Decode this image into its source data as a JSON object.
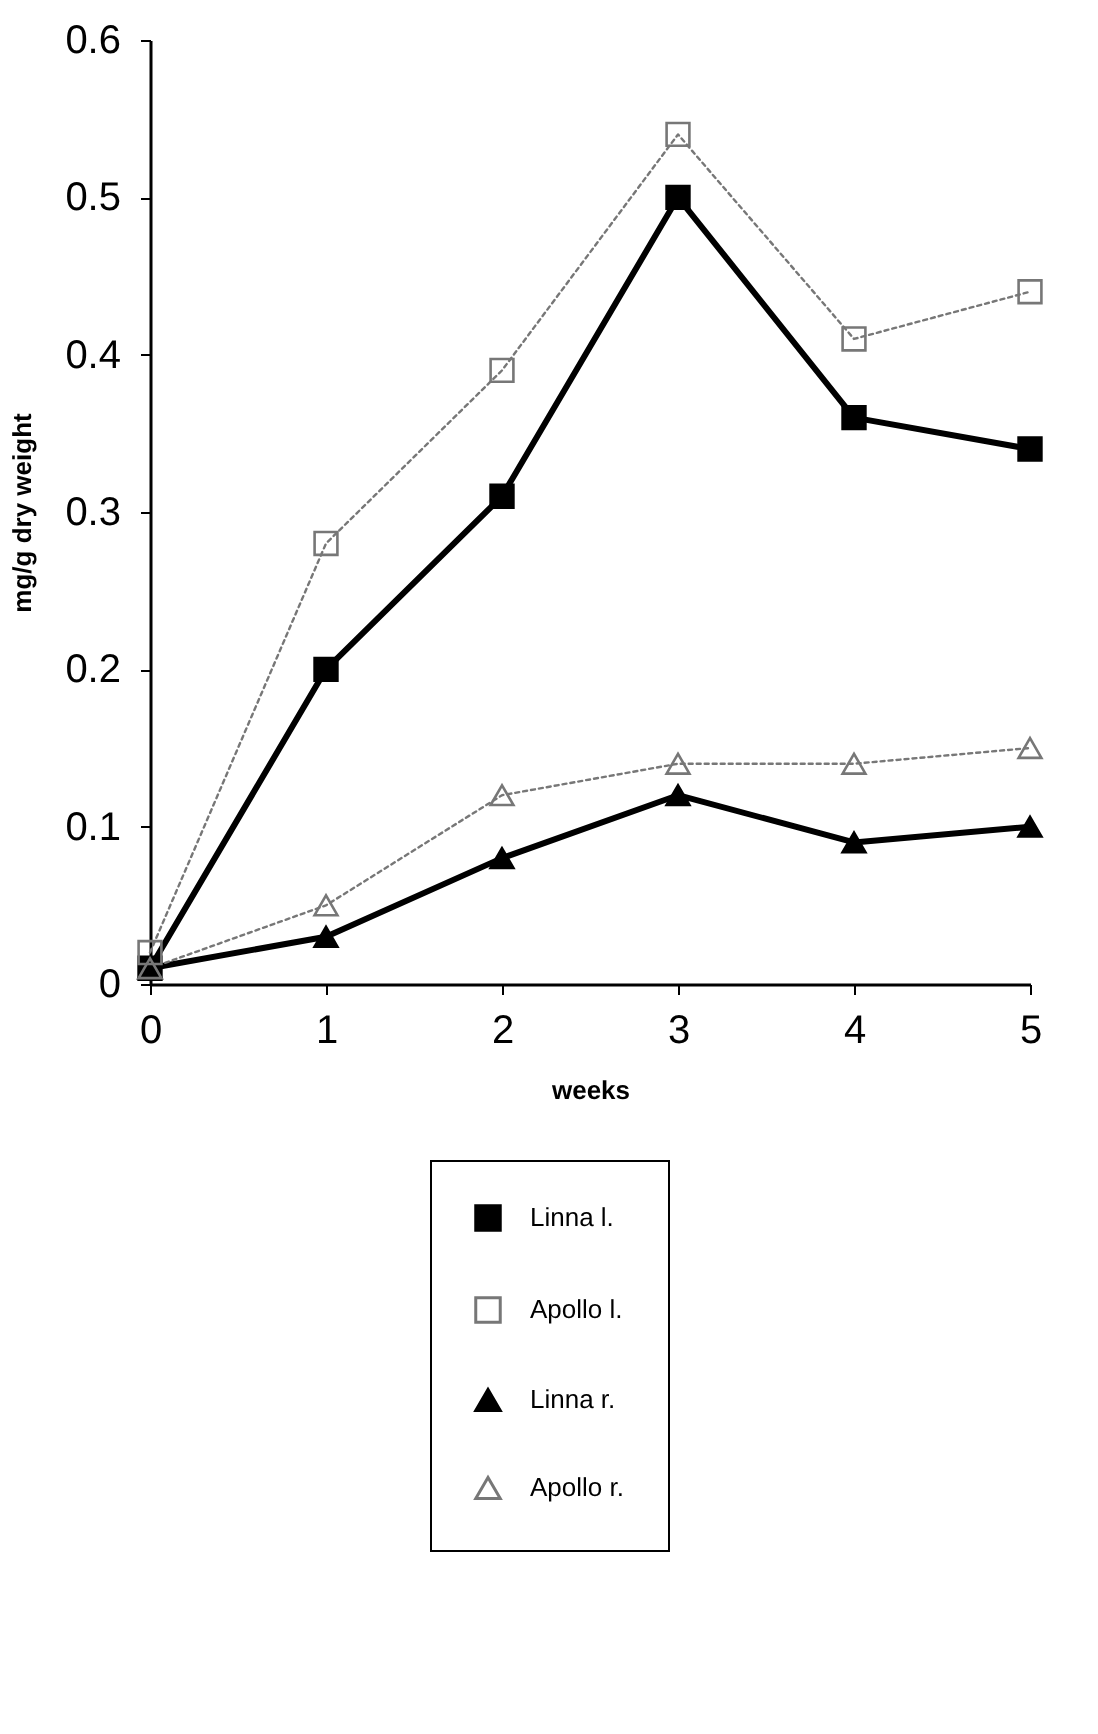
{
  "chart_data": {
    "type": "line",
    "xlabel": "weeks",
    "ylabel": "mg/g dry weight",
    "x": [
      0,
      1,
      2,
      3,
      4,
      5
    ],
    "xlim": [
      0,
      5
    ],
    "xticks": [
      0,
      1,
      2,
      3,
      4,
      5
    ],
    "ylim": [
      0,
      0.6
    ],
    "yticks": [
      0,
      0.1,
      0.2,
      0.3,
      0.4,
      0.5,
      0.6
    ],
    "grid": false,
    "legend": "bottom",
    "series": [
      {
        "name": "Linna l.",
        "color": "#000000",
        "marker": "square",
        "line_style": "solid",
        "values": [
          0.01,
          0.2,
          0.31,
          0.5,
          0.36,
          0.34
        ]
      },
      {
        "name": "Apollo l.",
        "color": "#777777",
        "marker": "square",
        "line_style": "dotted",
        "values": [
          0.02,
          0.28,
          0.39,
          0.54,
          0.41,
          0.44
        ]
      },
      {
        "name": "Linna r.",
        "color": "#000000",
        "marker": "triangle",
        "line_style": "solid",
        "values": [
          0.01,
          0.03,
          0.08,
          0.12,
          0.09,
          0.1
        ]
      },
      {
        "name": "Apollo r.",
        "color": "#777777",
        "marker": "triangle",
        "line_style": "dotted",
        "values": [
          0.01,
          0.05,
          0.12,
          0.14,
          0.14,
          0.15
        ]
      }
    ]
  }
}
